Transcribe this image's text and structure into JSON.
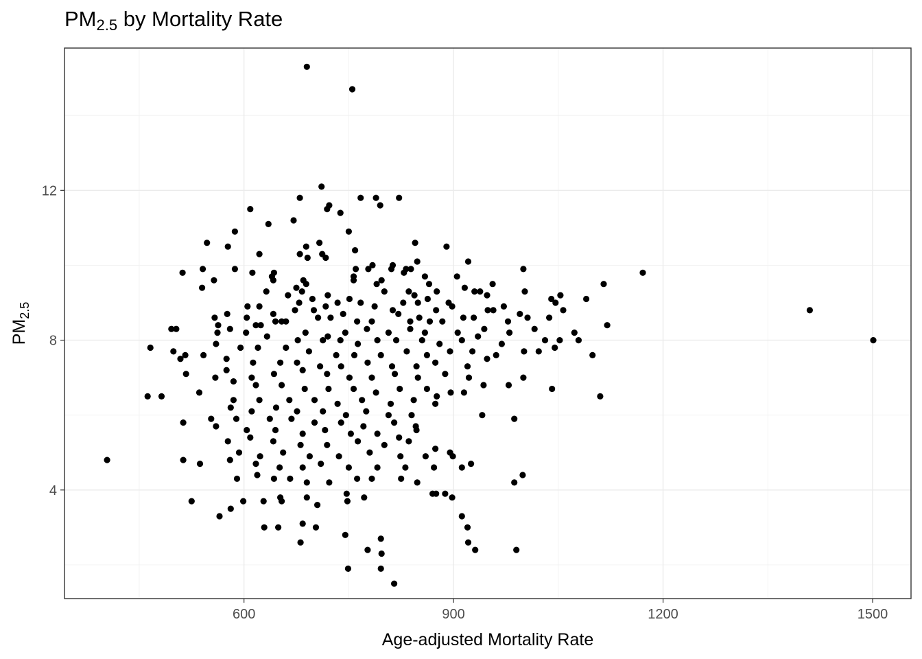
{
  "chart_data": {
    "type": "scatter",
    "title": {
      "main": "PM",
      "sub": "2.5",
      "rest": " by Mortality Rate"
    },
    "xlabel": "Age-adjusted Mortality Rate",
    "ylabel": {
      "main": "PM",
      "sub": "2.5"
    },
    "xlim": [
      343,
      1555
    ],
    "ylim": [
      1.1,
      15.8
    ],
    "x_ticks": [
      600,
      900,
      1200,
      1500
    ],
    "y_ticks": [
      4,
      8,
      12
    ],
    "x_minor": [
      450,
      750,
      1050,
      1350
    ],
    "y_minor": [
      2,
      6,
      10,
      14
    ],
    "grid": true,
    "point_color": "#000000",
    "points": [
      [
        690,
        15.3
      ],
      [
        755,
        14.7
      ],
      [
        711,
        12.1
      ],
      [
        822,
        11.8
      ],
      [
        680,
        11.8
      ],
      [
        767,
        11.8
      ],
      [
        789,
        11.8
      ],
      [
        795,
        11.6
      ],
      [
        722,
        11.6
      ],
      [
        719,
        11.5
      ],
      [
        609,
        11.5
      ],
      [
        738,
        11.4
      ],
      [
        671,
        11.2
      ],
      [
        635,
        11.1
      ],
      [
        587,
        10.9
      ],
      [
        750,
        10.9
      ],
      [
        547,
        10.6
      ],
      [
        708,
        10.6
      ],
      [
        845,
        10.6
      ],
      [
        577,
        10.5
      ],
      [
        689,
        10.5
      ],
      [
        691,
        10.2
      ],
      [
        622,
        10.3
      ],
      [
        680,
        10.3
      ],
      [
        712,
        10.3
      ],
      [
        759,
        10.4
      ],
      [
        890,
        10.5
      ],
      [
        717,
        10.2
      ],
      [
        921,
        10.1
      ],
      [
        813,
        10.0
      ],
      [
        839,
        9.9
      ],
      [
        848,
        10.1
      ],
      [
        587,
        9.9
      ],
      [
        541,
        9.9
      ],
      [
        760,
        9.9
      ],
      [
        778,
        9.9
      ],
      [
        811,
        9.9
      ],
      [
        832,
        9.9
      ],
      [
        1000,
        9.9
      ],
      [
        784,
        10.0
      ],
      [
        512,
        9.8
      ],
      [
        612,
        9.8
      ],
      [
        643,
        9.8
      ],
      [
        640,
        9.7
      ],
      [
        757,
        9.7
      ],
      [
        829,
        9.8
      ],
      [
        859,
        9.7
      ],
      [
        905,
        9.7
      ],
      [
        557,
        9.6
      ],
      [
        642,
        9.6
      ],
      [
        685,
        9.6
      ],
      [
        757,
        9.6
      ],
      [
        797,
        9.6
      ],
      [
        1171,
        9.8
      ],
      [
        689,
        9.5
      ],
      [
        1115,
        9.5
      ],
      [
        790,
        9.5
      ],
      [
        865,
        9.5
      ],
      [
        956,
        9.5
      ],
      [
        540,
        9.4
      ],
      [
        675,
        9.4
      ],
      [
        683,
        9.3
      ],
      [
        801,
        9.3
      ],
      [
        836,
        9.3
      ],
      [
        844,
        9.2
      ],
      [
        876,
        9.3
      ],
      [
        916,
        9.4
      ],
      [
        938,
        9.3
      ],
      [
        1002,
        9.3
      ],
      [
        632,
        9.3
      ],
      [
        720,
        9.2
      ],
      [
        698,
        9.1
      ],
      [
        751,
        9.1
      ],
      [
        863,
        9.1
      ],
      [
        930,
        9.3
      ],
      [
        948,
        9.2
      ],
      [
        1053,
        9.2
      ],
      [
        1090,
        9.1
      ],
      [
        663,
        9.2
      ],
      [
        679,
        9.0
      ],
      [
        734,
        9.0
      ],
      [
        787,
        8.9
      ],
      [
        828,
        9.0
      ],
      [
        849,
        9.0
      ],
      [
        893,
        9.0
      ],
      [
        972,
        8.9
      ],
      [
        1040,
        9.1
      ],
      [
        1046,
        9.0
      ],
      [
        605,
        8.9
      ],
      [
        622,
        8.9
      ],
      [
        673,
        8.8
      ],
      [
        717,
        8.9
      ],
      [
        767,
        9.0
      ],
      [
        813,
        8.8
      ],
      [
        875,
        8.8
      ],
      [
        898,
        8.9
      ],
      [
        949,
        8.8
      ],
      [
        1410,
        8.8
      ],
      [
        576,
        8.7
      ],
      [
        642,
        8.7
      ],
      [
        700,
        8.8
      ],
      [
        742,
        8.7
      ],
      [
        821,
        8.7
      ],
      [
        851,
        8.6
      ],
      [
        914,
        8.6
      ],
      [
        957,
        8.8
      ],
      [
        995,
        8.7
      ],
      [
        1057,
        8.8
      ],
      [
        558,
        8.6
      ],
      [
        604,
        8.6
      ],
      [
        617,
        8.4
      ],
      [
        645,
        8.5
      ],
      [
        660,
        8.5
      ],
      [
        706,
        8.6
      ],
      [
        724,
        8.6
      ],
      [
        762,
        8.5
      ],
      [
        783,
        8.5
      ],
      [
        838,
        8.5
      ],
      [
        866,
        8.5
      ],
      [
        884,
        8.5
      ],
      [
        929,
        8.6
      ],
      [
        978,
        8.5
      ],
      [
        1006,
        8.6
      ],
      [
        1037,
        8.6
      ],
      [
        496,
        8.3
      ],
      [
        503,
        8.3
      ],
      [
        563,
        8.4
      ],
      [
        580,
        8.3
      ],
      [
        624,
        8.4
      ],
      [
        654,
        8.5
      ],
      [
        688,
        8.2
      ],
      [
        720,
        8.1
      ],
      [
        745,
        8.2
      ],
      [
        776,
        8.3
      ],
      [
        807,
        8.2
      ],
      [
        838,
        8.3
      ],
      [
        859,
        8.2
      ],
      [
        906,
        8.2
      ],
      [
        944,
        8.3
      ],
      [
        980,
        8.2
      ],
      [
        1016,
        8.3
      ],
      [
        1073,
        8.2
      ],
      [
        1120,
        8.4
      ],
      [
        516,
        7.6
      ],
      [
        562,
        8.2
      ],
      [
        603,
        8.2
      ],
      [
        633,
        8.1
      ],
      [
        677,
        8.0
      ],
      [
        713,
        8.0
      ],
      [
        738,
        8.0
      ],
      [
        763,
        7.9
      ],
      [
        791,
        8.0
      ],
      [
        818,
        8.0
      ],
      [
        855,
        8.0
      ],
      [
        880,
        7.9
      ],
      [
        912,
        8.0
      ],
      [
        935,
        8.1
      ],
      [
        969,
        7.9
      ],
      [
        1031,
        8.0
      ],
      [
        1052,
        8.0
      ],
      [
        1079,
        8.0
      ],
      [
        1501,
        8.0
      ],
      [
        466,
        7.8
      ],
      [
        499,
        7.7
      ],
      [
        560,
        7.9
      ],
      [
        595,
        7.8
      ],
      [
        620,
        7.8
      ],
      [
        660,
        7.8
      ],
      [
        693,
        7.7
      ],
      [
        732,
        7.6
      ],
      [
        758,
        7.6
      ],
      [
        796,
        7.6
      ],
      [
        833,
        7.7
      ],
      [
        862,
        7.6
      ],
      [
        895,
        7.7
      ],
      [
        927,
        7.7
      ],
      [
        961,
        7.6
      ],
      [
        1001,
        7.7
      ],
      [
        1045,
        7.8
      ],
      [
        1099,
        7.6
      ],
      [
        509,
        7.5
      ],
      [
        542,
        7.6
      ],
      [
        575,
        7.5
      ],
      [
        613,
        7.4
      ],
      [
        652,
        7.4
      ],
      [
        676,
        7.4
      ],
      [
        709,
        7.3
      ],
      [
        739,
        7.3
      ],
      [
        777,
        7.4
      ],
      [
        812,
        7.3
      ],
      [
        847,
        7.3
      ],
      [
        874,
        7.4
      ],
      [
        920,
        7.3
      ],
      [
        948,
        7.5
      ],
      [
        1022,
        7.7
      ],
      [
        575,
        7.2
      ],
      [
        611,
        7.0
      ],
      [
        643,
        7.1
      ],
      [
        684,
        7.2
      ],
      [
        719,
        7.1
      ],
      [
        751,
        7.0
      ],
      [
        783,
        7.0
      ],
      [
        816,
        7.1
      ],
      [
        849,
        7.0
      ],
      [
        888,
        7.1
      ],
      [
        922,
        7.0
      ],
      [
        1000,
        7.0
      ],
      [
        517,
        7.1
      ],
      [
        559,
        7.0
      ],
      [
        585,
        6.9
      ],
      [
        617,
        6.8
      ],
      [
        654,
        6.8
      ],
      [
        687,
        6.7
      ],
      [
        721,
        6.7
      ],
      [
        757,
        6.7
      ],
      [
        789,
        6.6
      ],
      [
        823,
        6.7
      ],
      [
        862,
        6.7
      ],
      [
        896,
        6.6
      ],
      [
        943,
        6.8
      ],
      [
        979,
        6.8
      ],
      [
        1041,
        6.7
      ],
      [
        1110,
        6.5
      ],
      [
        462,
        6.5
      ],
      [
        482,
        6.5
      ],
      [
        536,
        6.6
      ],
      [
        585,
        6.4
      ],
      [
        622,
        6.4
      ],
      [
        665,
        6.4
      ],
      [
        701,
        6.4
      ],
      [
        734,
        6.3
      ],
      [
        769,
        6.4
      ],
      [
        810,
        6.3
      ],
      [
        843,
        6.4
      ],
      [
        876,
        6.5
      ],
      [
        915,
        6.6
      ],
      [
        581,
        6.2
      ],
      [
        611,
        6.1
      ],
      [
        646,
        6.2
      ],
      [
        676,
        6.1
      ],
      [
        713,
        6.1
      ],
      [
        746,
        6.0
      ],
      [
        775,
        6.1
      ],
      [
        807,
        6.0
      ],
      [
        840,
        6.0
      ],
      [
        874,
        6.3
      ],
      [
        553,
        5.9
      ],
      [
        589,
        5.9
      ],
      [
        637,
        5.9
      ],
      [
        668,
        5.9
      ],
      [
        701,
        5.8
      ],
      [
        739,
        5.8
      ],
      [
        771,
        5.7
      ],
      [
        815,
        5.8
      ],
      [
        846,
        5.7
      ],
      [
        941,
        6.0
      ],
      [
        513,
        5.8
      ],
      [
        560,
        5.7
      ],
      [
        604,
        5.6
      ],
      [
        645,
        5.6
      ],
      [
        684,
        5.5
      ],
      [
        716,
        5.6
      ],
      [
        753,
        5.5
      ],
      [
        791,
        5.5
      ],
      [
        822,
        5.4
      ],
      [
        847,
        5.6
      ],
      [
        987,
        5.9
      ],
      [
        577,
        5.3
      ],
      [
        609,
        5.4
      ],
      [
        642,
        5.3
      ],
      [
        681,
        5.2
      ],
      [
        719,
        5.2
      ],
      [
        763,
        5.3
      ],
      [
        801,
        5.2
      ],
      [
        836,
        5.3
      ],
      [
        874,
        5.1
      ],
      [
        895,
        5.0
      ],
      [
        593,
        5.0
      ],
      [
        623,
        4.9
      ],
      [
        656,
        5.0
      ],
      [
        694,
        4.9
      ],
      [
        736,
        4.9
      ],
      [
        780,
        5.0
      ],
      [
        824,
        4.9
      ],
      [
        860,
        4.9
      ],
      [
        899,
        4.9
      ],
      [
        513,
        4.8
      ],
      [
        537,
        4.7
      ],
      [
        580,
        4.8
      ],
      [
        617,
        4.7
      ],
      [
        651,
        4.6
      ],
      [
        684,
        4.6
      ],
      [
        710,
        4.7
      ],
      [
        750,
        4.6
      ],
      [
        791,
        4.6
      ],
      [
        831,
        4.6
      ],
      [
        872,
        4.6
      ],
      [
        912,
        4.6
      ],
      [
        925,
        4.7
      ],
      [
        987,
        4.2
      ],
      [
        999,
        4.4
      ],
      [
        404,
        4.8
      ],
      [
        590,
        4.3
      ],
      [
        619,
        4.4
      ],
      [
        643,
        4.3
      ],
      [
        666,
        4.3
      ],
      [
        690,
        4.2
      ],
      [
        722,
        4.2
      ],
      [
        762,
        4.3
      ],
      [
        783,
        4.3
      ],
      [
        825,
        4.3
      ],
      [
        848,
        4.2
      ],
      [
        875,
        3.9
      ],
      [
        888,
        3.9
      ],
      [
        652,
        3.8
      ],
      [
        690,
        3.8
      ],
      [
        747,
        3.9
      ],
      [
        772,
        3.8
      ],
      [
        870,
        3.9
      ],
      [
        525,
        3.7
      ],
      [
        565,
        3.3
      ],
      [
        599,
        3.7
      ],
      [
        628,
        3.7
      ],
      [
        654,
        3.7
      ],
      [
        705,
        3.6
      ],
      [
        748,
        3.7
      ],
      [
        898,
        3.8
      ],
      [
        912,
        3.3
      ],
      [
        629,
        3.0
      ],
      [
        649,
        3.0
      ],
      [
        684,
        3.1
      ],
      [
        703,
        3.0
      ],
      [
        920,
        3.0
      ],
      [
        581,
        3.5
      ],
      [
        681,
        2.6
      ],
      [
        796,
        2.7
      ],
      [
        749,
        1.9
      ],
      [
        777,
        2.4
      ],
      [
        797,
        2.3
      ],
      [
        796,
        1.9
      ],
      [
        815,
        1.5
      ],
      [
        931,
        2.4
      ],
      [
        921,
        2.6
      ],
      [
        990,
        2.4
      ],
      [
        745,
        2.8
      ]
    ]
  }
}
